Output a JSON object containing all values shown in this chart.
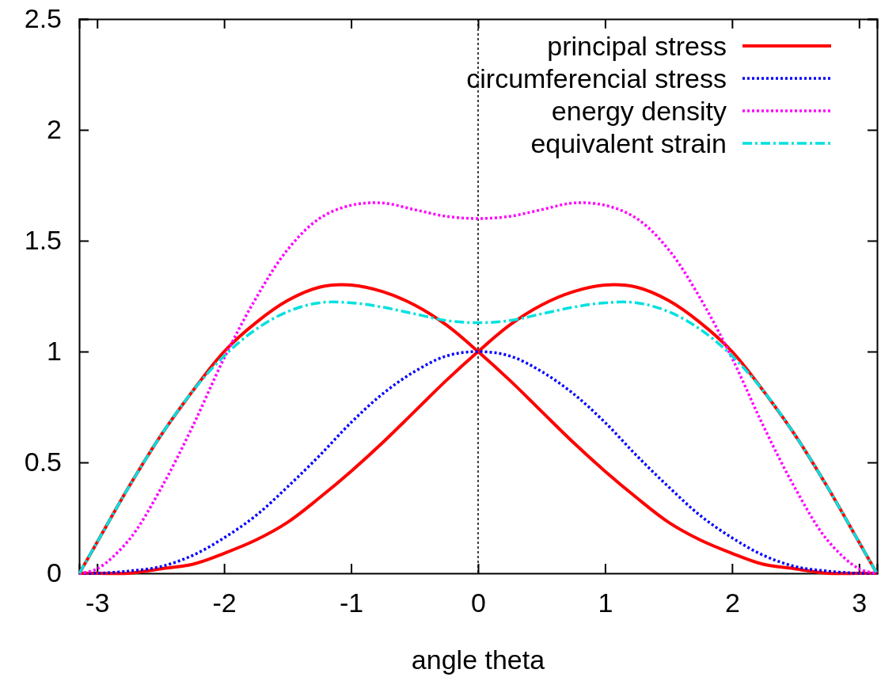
{
  "chart_data": {
    "type": "line",
    "xlabel": "angle theta",
    "xlim": [
      -3.1416,
      3.1416
    ],
    "ylim": [
      0,
      2.5
    ],
    "xticks": [
      -3,
      -2,
      -1,
      0,
      1,
      2,
      3
    ],
    "yticks": [
      0,
      0.5,
      1,
      1.5,
      2,
      2.5
    ],
    "grid": false,
    "legend": "top right",
    "marker": "none",
    "x": [
      -3.14,
      -3,
      -2.75,
      -2.5,
      -2.25,
      -2,
      -1.75,
      -1.5,
      -1.25,
      -1,
      -0.75,
      -0.5,
      -0.25,
      0,
      0.25,
      0.5,
      0.75,
      1,
      1.25,
      1.5,
      1.75,
      2,
      2.25,
      2.5,
      2.75,
      3,
      3.14
    ],
    "ref_lines": [
      {
        "axis": "x",
        "value": 0,
        "color": "#000000",
        "line_style": "dotted"
      }
    ],
    "series": [
      {
        "name": "principal stress",
        "color": "#ff0000",
        "line_style": "solid",
        "x": [
          -3.14,
          -3,
          -2.75,
          -2.5,
          -2.25,
          -2,
          -1.75,
          -1.5,
          -1.25,
          -1,
          -0.75,
          -0.5,
          -0.25,
          0,
          0.25,
          0.5,
          0.75,
          1,
          1.25,
          1.5,
          1.75,
          2,
          2.25,
          2.5,
          2.75,
          3,
          3.14,
          null,
          -3.14,
          -3,
          -2.75,
          -2.5,
          -2.25,
          -2,
          -1.75,
          -1.5,
          -1.25,
          -1,
          -0.75,
          -0.5,
          -0.25,
          0,
          0.25,
          0.5,
          0.75,
          1,
          1.25,
          1.5,
          1.75,
          2,
          2.25,
          2.5,
          2.75,
          3,
          3.14
        ],
        "values": [
          0,
          0.14,
          0.39,
          0.62,
          0.82,
          1.0,
          1.13,
          1.23,
          1.29,
          1.3,
          1.27,
          1.21,
          1.12,
          1,
          0.87,
          0.73,
          0.59,
          0.46,
          0.34,
          0.23,
          0.15,
          0.09,
          0.04,
          0.02,
          0,
          0,
          0,
          null,
          0,
          0,
          0,
          0.02,
          0.04,
          0.09,
          0.15,
          0.23,
          0.34,
          0.46,
          0.59,
          0.73,
          0.87,
          1,
          1.12,
          1.21,
          1.27,
          1.3,
          1.29,
          1.23,
          1.13,
          1.0,
          0.82,
          0.62,
          0.39,
          0.14,
          0
        ]
      },
      {
        "name": "circumferencial stress",
        "color": "#0000ff",
        "line_style": "dotted",
        "values": [
          0,
          0,
          0.01,
          0.03,
          0.08,
          0.16,
          0.26,
          0.39,
          0.53,
          0.68,
          0.81,
          0.91,
          0.98,
          1,
          0.98,
          0.91,
          0.81,
          0.68,
          0.53,
          0.39,
          0.26,
          0.16,
          0.08,
          0.03,
          0.01,
          0,
          0
        ]
      },
      {
        "name": "energy density",
        "color": "#ff00ff",
        "line_style": "dotted",
        "values": [
          0,
          0.02,
          0.15,
          0.38,
          0.66,
          0.97,
          1.24,
          1.46,
          1.6,
          1.66,
          1.67,
          1.64,
          1.61,
          1.6,
          1.61,
          1.64,
          1.67,
          1.66,
          1.6,
          1.46,
          1.24,
          0.97,
          0.66,
          0.38,
          0.15,
          0.02,
          0
        ]
      },
      {
        "name": "equivalent strain",
        "color": "#00e0e0",
        "line_style": "dashdot",
        "values": [
          0,
          0.14,
          0.39,
          0.62,
          0.82,
          0.98,
          1.1,
          1.18,
          1.22,
          1.22,
          1.2,
          1.17,
          1.14,
          1.13,
          1.14,
          1.17,
          1.2,
          1.22,
          1.22,
          1.18,
          1.1,
          0.98,
          0.82,
          0.62,
          0.39,
          0.14,
          0
        ]
      }
    ]
  }
}
